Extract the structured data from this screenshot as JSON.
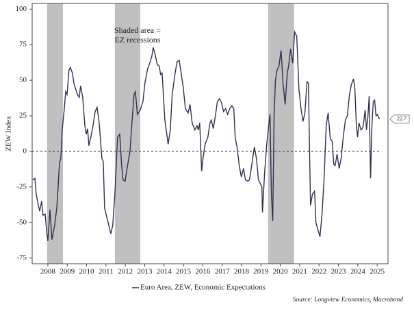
{
  "chart_data": {
    "type": "line",
    "ylabel": "ZEW Index",
    "annotation_lines": [
      "Shaded area =",
      "EZ recessions"
    ],
    "source": "Source: Longview Economics, Macrobond",
    "x": [
      2007.22,
      2007.33,
      2007.4,
      2007.51,
      2007.58,
      2007.68,
      2007.75,
      2007.86,
      2007.93,
      2008.0,
      2008.11,
      2008.21,
      2008.35,
      2008.46,
      2008.53,
      2008.6,
      2008.67,
      2008.74,
      2008.85,
      2008.92,
      2008.99,
      2009.09,
      2009.16,
      2009.27,
      2009.34,
      2009.41,
      2009.52,
      2009.62,
      2009.69,
      2009.8,
      2009.91,
      2009.98,
      2010.05,
      2010.12,
      2010.22,
      2010.33,
      2010.44,
      2010.54,
      2010.65,
      2010.79,
      2010.86,
      2010.93,
      2011.11,
      2011.25,
      2011.35,
      2011.46,
      2011.6,
      2011.71,
      2011.81,
      2011.88,
      2011.99,
      2012.09,
      2012.24,
      2012.34,
      2012.45,
      2012.52,
      2012.62,
      2012.77,
      2012.91,
      2013.01,
      2013.15,
      2013.26,
      2013.37,
      2013.44,
      2013.54,
      2013.65,
      2013.75,
      2013.82,
      2013.9,
      2014.04,
      2014.21,
      2014.32,
      2014.42,
      2014.57,
      2014.67,
      2014.78,
      2014.88,
      2014.99,
      2015.1,
      2015.24,
      2015.34,
      2015.45,
      2015.59,
      2015.7,
      2015.77,
      2015.84,
      2015.94,
      2016.01,
      2016.12,
      2016.26,
      2016.37,
      2016.44,
      2016.54,
      2016.65,
      2016.75,
      2016.86,
      2016.97,
      2017.07,
      2017.18,
      2017.28,
      2017.39,
      2017.5,
      2017.6,
      2017.67,
      2017.78,
      2017.88,
      2017.99,
      2018.1,
      2018.2,
      2018.31,
      2018.41,
      2018.52,
      2018.66,
      2018.77,
      2018.87,
      2018.98,
      2019.05,
      2019.08,
      2019.19,
      2019.3,
      2019.4,
      2019.47,
      2019.54,
      2019.61,
      2019.68,
      2019.75,
      2019.83,
      2019.93,
      2020.04,
      2020.14,
      2020.25,
      2020.36,
      2020.43,
      2020.53,
      2020.64,
      2020.74,
      2020.85,
      2020.96,
      2021.06,
      2021.17,
      2021.27,
      2021.38,
      2021.45,
      2021.56,
      2021.66,
      2021.77,
      2021.84,
      2021.94,
      2022.05,
      2022.16,
      2022.26,
      2022.37,
      2022.47,
      2022.58,
      2022.68,
      2022.76,
      2022.83,
      2022.93,
      2023.04,
      2023.14,
      2023.25,
      2023.36,
      2023.46,
      2023.57,
      2023.67,
      2023.78,
      2023.85,
      2023.92,
      2023.99,
      2024.06,
      2024.17,
      2024.27,
      2024.38,
      2024.45,
      2024.52,
      2024.59,
      2024.66,
      2024.73,
      2024.8,
      2024.87,
      2024.94,
      2025.01,
      2025.12
    ],
    "series": [
      {
        "name": "Euro Area, ZEW, Economic Expectations",
        "color": "#2e3050",
        "values": [
          -20,
          -19,
          -30,
          -38,
          -42,
          -35,
          -45,
          -44,
          -55,
          -63,
          -41,
          -62,
          -52,
          -40,
          -25,
          -8,
          -5,
          15,
          30,
          42,
          40,
          57,
          59,
          55,
          48,
          45,
          40,
          38,
          46,
          38,
          18,
          12,
          16,
          4,
          10,
          18,
          28,
          31,
          20,
          -5,
          -7,
          -40,
          -50,
          -58,
          -52,
          -30,
          10,
          12,
          -10,
          -20,
          -21,
          -12,
          0,
          20,
          40,
          42,
          26,
          29,
          35,
          48,
          58,
          62,
          67,
          73,
          68,
          61,
          60,
          54,
          55,
          22,
          5,
          15,
          40,
          55,
          63,
          64,
          55,
          45,
          30,
          27,
          33,
          20,
          15,
          18,
          15,
          20,
          -14,
          -5,
          5,
          10,
          20,
          22,
          16,
          25,
          35,
          37,
          34,
          28,
          30,
          26,
          30,
          32,
          30,
          10,
          2,
          -10,
          -18,
          -12,
          -20,
          -21,
          -20,
          -10,
          3,
          -5,
          -20,
          -23,
          -25,
          -43,
          -15,
          5,
          18,
          26,
          -30,
          -49,
          25,
          50,
          57,
          60,
          71,
          48,
          33,
          55,
          60,
          72,
          62,
          84,
          81,
          44,
          31,
          21,
          27,
          49,
          48,
          -38,
          -30,
          -28,
          -50,
          -55,
          -60,
          -43,
          -19,
          18,
          27,
          9,
          7,
          -9,
          -10,
          -2,
          -12,
          -5,
          10,
          22,
          25,
          40,
          47,
          51,
          44,
          20,
          10,
          20,
          15,
          17,
          29,
          15,
          24,
          39,
          -19,
          18,
          35,
          36,
          25,
          26,
          22.7
        ]
      }
    ],
    "current_value": 22.7,
    "reference_line": 0,
    "recessions": [
      [
        2007.96,
        2008.78
      ],
      [
        2011.46,
        2012.77
      ],
      [
        2019.37,
        2020.71
      ]
    ],
    "recession_color": "#c0c0c0",
    "xlim": [
      2007.19,
      2025.56
    ],
    "xticks": [
      2008,
      2009,
      2010,
      2011,
      2012,
      2013,
      2014,
      2015,
      2016,
      2017,
      2018,
      2019,
      2020,
      2021,
      2022,
      2023,
      2024,
      2025
    ],
    "ylim": [
      -79,
      104
    ],
    "yticks": [
      -75,
      -50,
      -25,
      0,
      25,
      50,
      75,
      100
    ],
    "grid": false
  }
}
